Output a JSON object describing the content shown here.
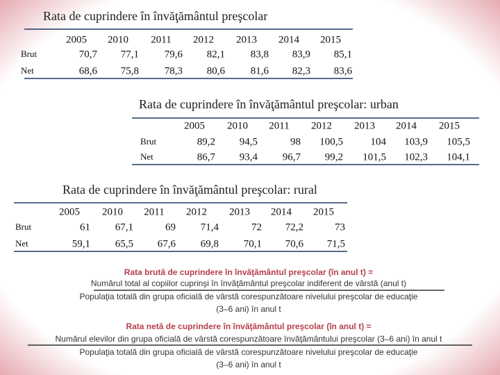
{
  "tables": [
    {
      "title": "Rata de cuprindere în învăţământul preşcolar",
      "years": [
        "2005",
        "2010",
        "2011",
        "2012",
        "2013",
        "2014",
        "2015"
      ],
      "rows": [
        {
          "label": "Brut",
          "values": [
            "70,7",
            "77,1",
            "79,6",
            "82,1",
            "83,8",
            "83,9",
            "85,1"
          ]
        },
        {
          "label": "Net",
          "values": [
            "68,6",
            "75,8",
            "78,3",
            "80,6",
            "81,6",
            "82,3",
            "83,6"
          ]
        }
      ]
    },
    {
      "title": "Rata de cuprindere în învăţământul preşcolar: urban",
      "years": [
        "2005",
        "2010",
        "2011",
        "2012",
        "2013",
        "2014",
        "2015"
      ],
      "rows": [
        {
          "label": "Brut",
          "values": [
            "89,2",
            "94,5",
            "98",
            "100,5",
            "104",
            "103,9",
            "105,5"
          ]
        },
        {
          "label": "Net",
          "values": [
            "86,7",
            "93,4",
            "96,7",
            "99,2",
            "101,5",
            "102,3",
            "104,1"
          ]
        }
      ]
    },
    {
      "title": "Rata de cuprindere în învăţământul preşcolar: rural",
      "years": [
        "2005",
        "2010",
        "2011",
        "2012",
        "2013",
        "2014",
        "2015"
      ],
      "rows": [
        {
          "label": "Brut",
          "values": [
            "61",
            "67,1",
            "69",
            "71,4",
            "72",
            "72,2",
            "73"
          ]
        },
        {
          "label": "Net",
          "values": [
            "59,1",
            "65,5",
            "67,6",
            "69,8",
            "70,1",
            "70,6",
            "71,5"
          ]
        }
      ]
    }
  ],
  "formulas": [
    {
      "title": "Rata brută de cuprindere în învăţământul preşcolar (în anul t) =",
      "numerator": "Numărul total al copiilor cuprinşi în învăţământul preşcolar indiferent de vârstă (anul t)",
      "denominator": [
        "Populaţia totală din grupa oficială de vârstă corespunzătoare nivelului preşcolar de educaţie",
        "(3–6 ani) în anul t"
      ]
    },
    {
      "title": "Rata netă de cuprindere în învăţământul preşcolar (în anul t) =",
      "numerator": "Numărul elevilor din grupa oficială de vârstă corespunzătoare învăţământului preşcolar (3–6 ani) în anul t",
      "denominator": [
        "Populaţia totală din grupa oficială de vârstă corespunzătoare nivelului preşcolar de educaţie",
        "(3–6 ani) în anul t"
      ]
    }
  ]
}
